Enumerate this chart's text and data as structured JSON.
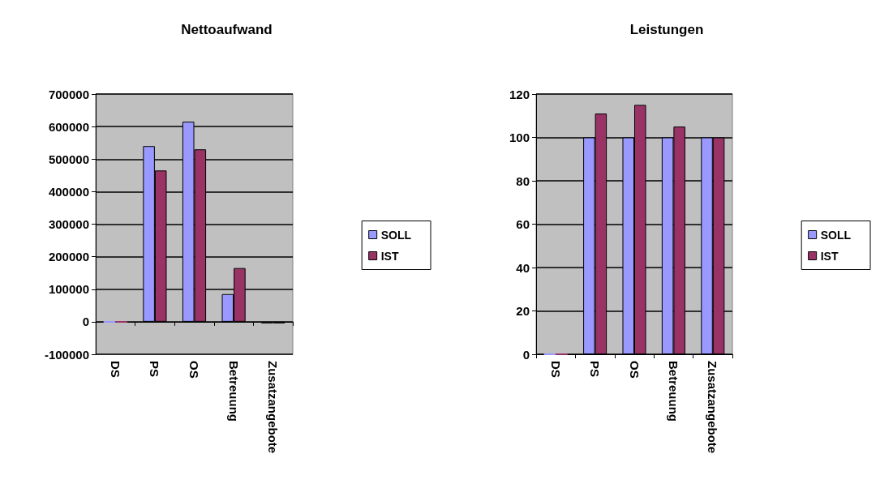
{
  "chart_data": [
    {
      "type": "bar",
      "title": "Nettoaufwand",
      "categories": [
        "DS",
        "PS",
        "OS",
        "Betreuung",
        "Zusatzangebote"
      ],
      "series": [
        {
          "name": "SOLL",
          "color": "#9999ff",
          "values": [
            0,
            540000,
            615000,
            85000,
            -5000
          ]
        },
        {
          "name": "IST",
          "color": "#993366",
          "values": [
            0,
            465000,
            530000,
            165000,
            -5000
          ]
        }
      ],
      "ylim": [
        -100000,
        700000
      ],
      "yticks": [
        -100000,
        0,
        100000,
        200000,
        300000,
        400000,
        500000,
        600000,
        700000
      ],
      "grid": "y",
      "legend": "right"
    },
    {
      "type": "bar",
      "title": "Leistungen",
      "categories": [
        "DS",
        "PS",
        "OS",
        "Betreuung",
        "Zusatzangebote"
      ],
      "series": [
        {
          "name": "SOLL",
          "color": "#9999ff",
          "values": [
            0,
            100,
            100,
            100,
            100
          ]
        },
        {
          "name": "IST",
          "color": "#993366",
          "values": [
            0,
            111,
            115,
            105,
            100
          ]
        }
      ],
      "ylim": [
        0,
        120
      ],
      "yticks": [
        0,
        20,
        40,
        60,
        80,
        100,
        120
      ],
      "grid": "y",
      "legend": "right"
    }
  ]
}
